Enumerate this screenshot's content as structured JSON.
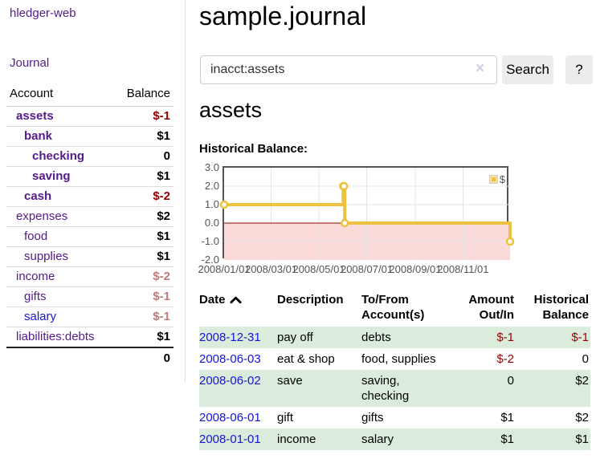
{
  "app": {
    "brand": "hledger-web",
    "nav_journal": "Journal"
  },
  "colors": {
    "accent_purple": "#551a8b",
    "link_blue": "#1414dd",
    "negative": "#990000",
    "negative_muted": "#bd7c7c",
    "row_green": "#dcecdc"
  },
  "sidebar": {
    "headers": {
      "account": "Account",
      "balance": "Balance"
    },
    "rows": [
      {
        "account": "assets",
        "balance": "$-1"
      },
      {
        "account": "bank",
        "balance": "$1"
      },
      {
        "account": "checking",
        "balance": "0"
      },
      {
        "account": "saving",
        "balance": "$1"
      },
      {
        "account": "cash",
        "balance": "$-2"
      },
      {
        "account": "expenses",
        "balance": "$2"
      },
      {
        "account": "food",
        "balance": "$1"
      },
      {
        "account": "supplies",
        "balance": "$1"
      },
      {
        "account": "income",
        "balance": "$-2"
      },
      {
        "account": "gifts",
        "balance": "$-1"
      },
      {
        "account": "salary",
        "balance": "$-1"
      },
      {
        "account": "liabilities:debts",
        "balance": "$1"
      }
    ],
    "total": "0"
  },
  "main": {
    "title": "sample.journal",
    "search": {
      "value": "inacct:assets",
      "clear_icon": "×",
      "search_button": "Search",
      "help_button": "?"
    },
    "account_heading": "assets",
    "chart_title": "Historical Balance:"
  },
  "chart_data": {
    "type": "line",
    "step": true,
    "x_range": [
      "2008-01-01",
      "2008-12-31"
    ],
    "ylim": [
      -2,
      3
    ],
    "y_ticks": [
      "3.0",
      "2.0",
      "1.0",
      "0.0",
      "-1.0",
      "-2.0"
    ],
    "x_ticks": [
      "2008/01/01",
      "2008/03/01",
      "2008/05/01",
      "2008/07/01",
      "2008/09/01",
      "2008/11/01"
    ],
    "grid_color": "#e5e5e5",
    "zero_line_color": "#8b0000",
    "negative_region_color": "#fbdada",
    "legend_position": "top-right",
    "series": [
      {
        "name": "$",
        "color": "#edc240",
        "points": [
          [
            "2008-01-01",
            1
          ],
          [
            "2008-06-01",
            2
          ],
          [
            "2008-06-02",
            2
          ],
          [
            "2008-06-03",
            0
          ],
          [
            "2008-12-31",
            -1
          ]
        ]
      }
    ]
  },
  "register": {
    "headers": {
      "date": "Date",
      "description": "Description",
      "account": "To/From Account(s)",
      "amount": "Amount Out/In",
      "balance": "Historical Balance"
    },
    "rows": [
      {
        "date": "2008-12-31",
        "description": "pay off",
        "accounts": "debts",
        "amount": "$-1",
        "balance": "$-1"
      },
      {
        "date": "2008-06-03",
        "description": "eat & shop",
        "accounts": "food, supplies",
        "amount": "$-2",
        "balance": "0"
      },
      {
        "date": "2008-06-02",
        "description": "save",
        "accounts": "saving,\nchecking",
        "amount": "0",
        "balance": "$2"
      },
      {
        "date": "2008-06-01",
        "description": "gift",
        "accounts": "gifts",
        "amount": "$1",
        "balance": "$2"
      },
      {
        "date": "2008-01-01",
        "description": "income",
        "accounts": "salary",
        "amount": "$1",
        "balance": "$1"
      }
    ]
  }
}
